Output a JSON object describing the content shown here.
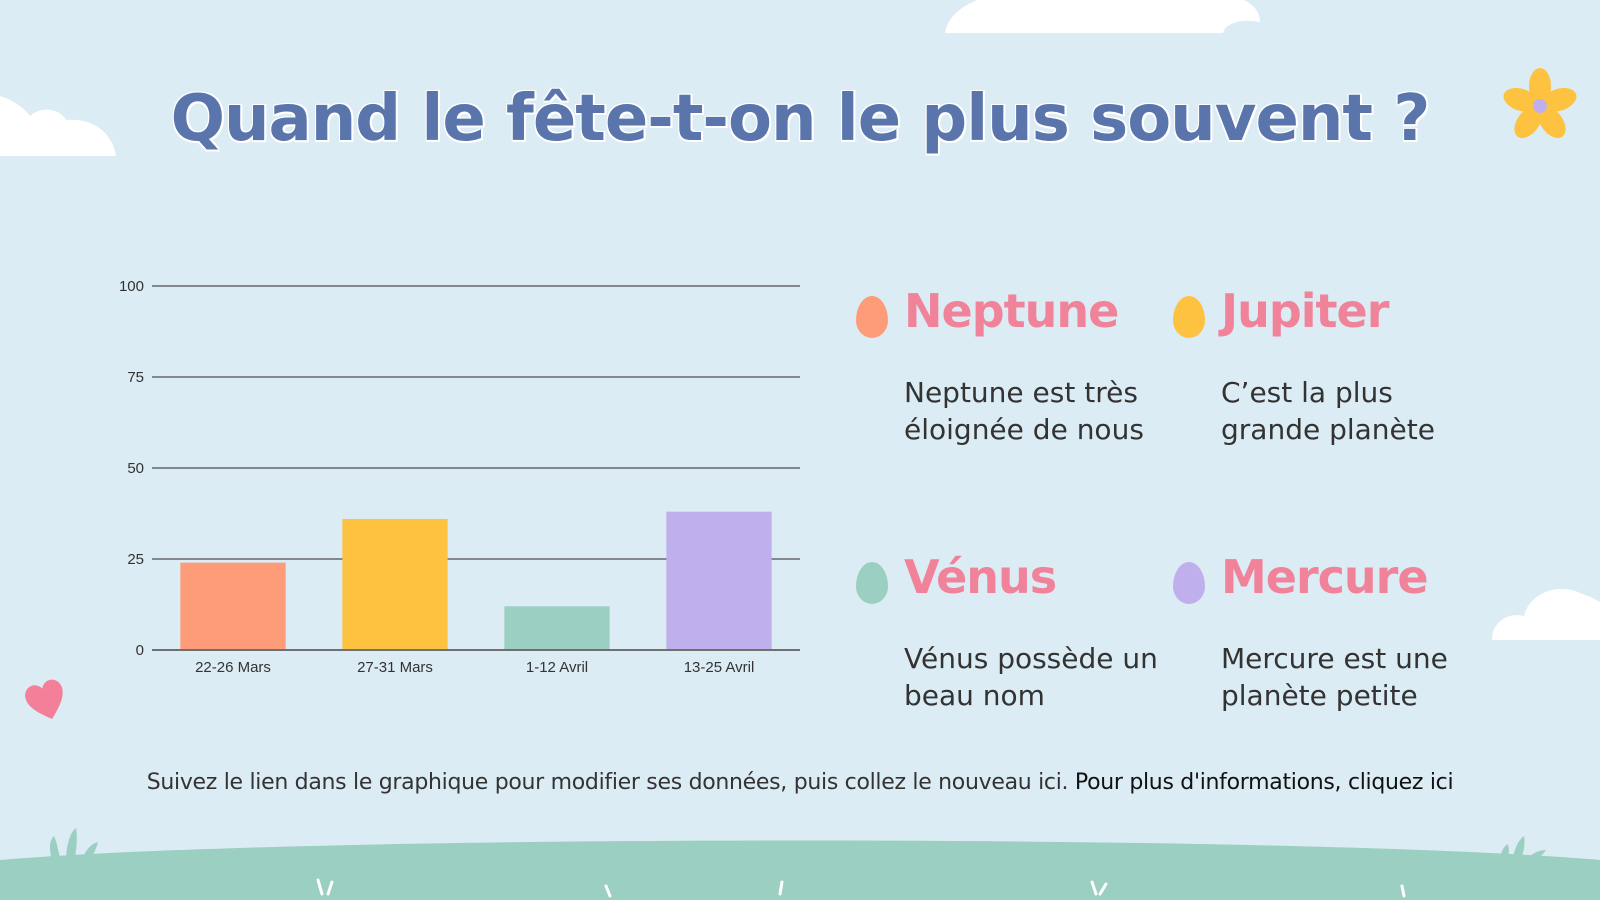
{
  "title": "Quand le fête-t-on le plus souvent ?",
  "chart_data": {
    "type": "bar",
    "categories": [
      "22-26 Mars",
      "27-31 Mars",
      "1-12 Avril",
      "13-25 Avril"
    ],
    "values": [
      24,
      36,
      12,
      38
    ],
    "colors": [
      "#fe9b78",
      "#fdc240",
      "#9bcfc1",
      "#bfb0ed"
    ],
    "ylim": [
      0,
      100
    ],
    "yticks": [
      "0",
      "25",
      "50",
      "75",
      "100"
    ],
    "grid": true,
    "title": "",
    "xlabel": "",
    "ylabel": ""
  },
  "legend": [
    {
      "name": "Neptune",
      "description": "Neptune est très éloignée de nous",
      "color": "#fe9b78"
    },
    {
      "name": "Jupiter",
      "description": "C’est la plus grande planète",
      "color": "#fdc240"
    },
    {
      "name": "Vénus",
      "description": "Vénus possède un beau nom",
      "color": "#9bcfc1"
    },
    {
      "name": "Mercure",
      "description": "Mercure est une planète petite",
      "color": "#bfb0ed"
    }
  ],
  "footer": {
    "text": "Suivez le lien dans le graphique pour modifier ses données, puis collez le nouveau ici. ",
    "link": "Pour plus d'informations, cliquez ici"
  }
}
